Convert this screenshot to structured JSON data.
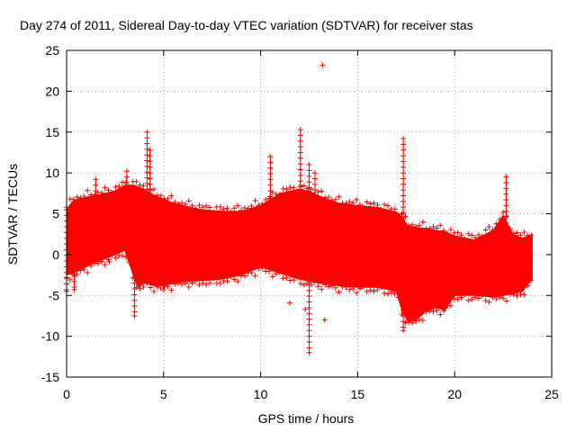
{
  "chart_data": {
    "type": "scatter",
    "title": "Day 274 of 2011, Sidereal Day-to-day VTEC variation (SDTVAR) for receiver stas",
    "xlabel": "GPS time / hours",
    "ylabel": "SDTVAR / TECUs",
    "xlim": [
      0,
      25
    ],
    "ylim": [
      -15,
      25
    ],
    "xticks": [
      0,
      5,
      10,
      15,
      20,
      25
    ],
    "yticks": [
      -15,
      -10,
      -5,
      0,
      5,
      10,
      15,
      20,
      25
    ],
    "grid": true,
    "marker": "+",
    "color": "#ff0000",
    "envelope": {
      "description": "dense band of points; upper and lower bounds of the bulk of data",
      "x": [
        0.0,
        0.3,
        0.6,
        1.0,
        1.4,
        2.0,
        2.5,
        3.0,
        3.5,
        3.7,
        4.0,
        4.5,
        5.0,
        5.5,
        6.0,
        7.0,
        8.0,
        9.0,
        10.0,
        11.0,
        12.0,
        12.5,
        13.0,
        14.0,
        15.0,
        16.0,
        17.0,
        17.3,
        17.6,
        18.0,
        18.5,
        19.0,
        19.5,
        20.0,
        21.0,
        22.0,
        22.5,
        23.0,
        23.5,
        24.0
      ],
      "upper": [
        5.5,
        6.5,
        6.8,
        7.0,
        7.2,
        7.5,
        7.8,
        8.5,
        8.5,
        8.3,
        8.0,
        7.3,
        6.8,
        6.3,
        6.0,
        5.5,
        5.3,
        5.3,
        6.0,
        7.5,
        8.0,
        7.8,
        7.2,
        6.3,
        6.0,
        5.8,
        5.2,
        4.5,
        3.5,
        3.3,
        3.2,
        3.0,
        2.8,
        2.3,
        1.8,
        3.0,
        4.8,
        2.5,
        2.0,
        2.5
      ],
      "lower": [
        -2.5,
        -2.3,
        -2.0,
        -1.5,
        -1.0,
        -0.5,
        0.0,
        0.5,
        -3.0,
        -4.0,
        -3.5,
        -3.8,
        -3.8,
        -3.5,
        -3.3,
        -3.2,
        -3.0,
        -2.5,
        -1.5,
        -2.3,
        -3.0,
        -3.3,
        -3.5,
        -3.8,
        -4.0,
        -4.0,
        -4.5,
        -7.0,
        -8.2,
        -8.0,
        -7.0,
        -6.5,
        -6.8,
        -5.0,
        -5.0,
        -5.2,
        -5.0,
        -4.8,
        -4.5,
        -3.0
      ]
    },
    "spikes": [
      {
        "x": 0.0,
        "low": -4.5,
        "high": 5.5
      },
      {
        "x": 0.4,
        "low": -4.3,
        "high": 6.5
      },
      {
        "x": 1.5,
        "low": 6.0,
        "high": 9.2
      },
      {
        "x": 3.1,
        "low": 7.0,
        "high": 10.2
      },
      {
        "x": 3.5,
        "low": -7.5,
        "high": 0.0
      },
      {
        "x": 4.15,
        "low": 8.0,
        "high": 15.0
      },
      {
        "x": 4.3,
        "low": 8.0,
        "high": 12.8
      },
      {
        "x": 5.0,
        "low": -4.3,
        "high": 6.0
      },
      {
        "x": 10.5,
        "low": 6.0,
        "high": 12.0
      },
      {
        "x": 12.05,
        "low": 8.0,
        "high": 15.3
      },
      {
        "x": 12.5,
        "low": -12.0,
        "high": 11.0
      },
      {
        "x": 12.8,
        "low": 6.0,
        "high": 10.0
      },
      {
        "x": 17.35,
        "low": -9.3,
        "high": 14.2
      },
      {
        "x": 22.65,
        "low": 3.0,
        "high": 9.5
      }
    ],
    "outliers": [
      {
        "x": 13.2,
        "y": 23.2
      },
      {
        "x": 11.5,
        "y": -5.9
      },
      {
        "x": 13.3,
        "y": -8.0
      },
      {
        "x": 2.2,
        "y": -0.9
      },
      {
        "x": 12.3,
        "y": -6.7
      }
    ]
  }
}
